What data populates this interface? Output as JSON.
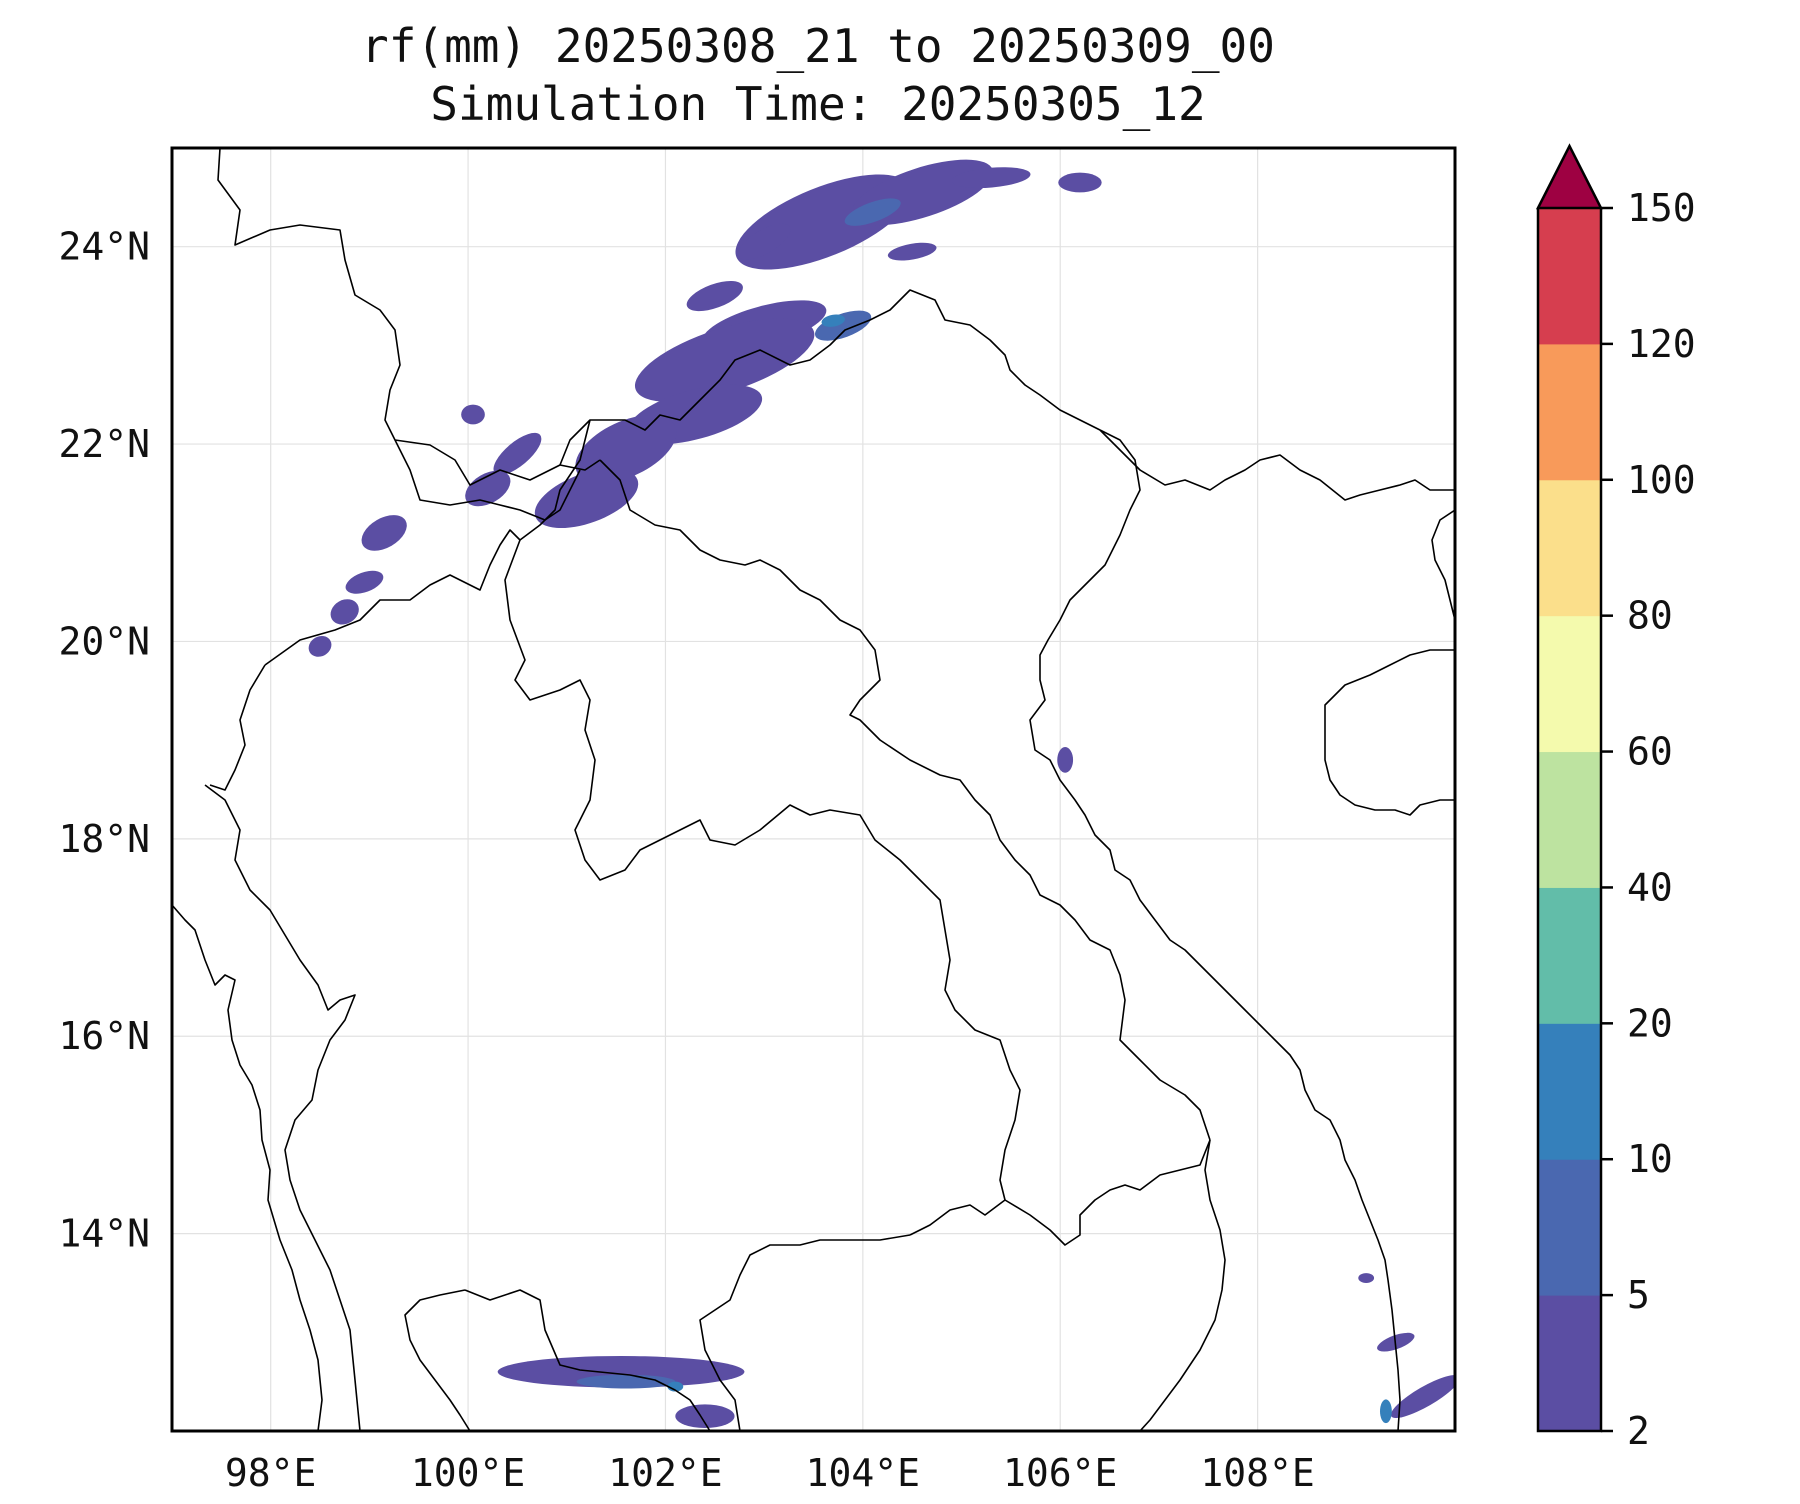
{
  "title": {
    "line1": "rf(mm) 20250308_21 to 20250309_00",
    "line2": "Simulation Time: 20250305_12"
  },
  "map": {
    "lon_range": [
      97.0,
      110.0
    ],
    "lat_range": [
      12.0,
      25.0
    ],
    "grid": true,
    "x_ticks": [
      {
        "value": 98,
        "label": "98°E"
      },
      {
        "value": 100,
        "label": "100°E"
      },
      {
        "value": 102,
        "label": "102°E"
      },
      {
        "value": 104,
        "label": "104°E"
      },
      {
        "value": 106,
        "label": "106°E"
      },
      {
        "value": 108,
        "label": "108°E"
      }
    ],
    "y_ticks": [
      {
        "value": 24,
        "label": "24°N"
      },
      {
        "value": 22,
        "label": "22°N"
      },
      {
        "value": 20,
        "label": "20°N"
      },
      {
        "value": 18,
        "label": "18°N"
      },
      {
        "value": 16,
        "label": "16°N"
      },
      {
        "value": 14,
        "label": "14°N"
      }
    ]
  },
  "colorbar": {
    "levels": [
      "2",
      "5",
      "10",
      "20",
      "40",
      "60",
      "80",
      "100",
      "120",
      "150"
    ],
    "colors": [
      "#5b4ea3",
      "#4a68b0",
      "#3580bb",
      "#62bda9",
      "#bde3a0",
      "#f4faad",
      "#fbdf8b",
      "#f89a5a",
      "#d63e4f"
    ],
    "extend_color": "#9e0142",
    "extend": "max"
  },
  "rain_areas": [
    {
      "level": "2-5",
      "lon": 103.6,
      "lat": 24.25,
      "rx": 0.95,
      "ry": 0.35,
      "rot": -22
    },
    {
      "level": "2-5",
      "lon": 104.6,
      "lat": 24.55,
      "rx": 0.75,
      "ry": 0.25,
      "rot": -18
    },
    {
      "level": "2-5",
      "lon": 102.5,
      "lat": 23.5,
      "rx": 0.3,
      "ry": 0.12,
      "rot": -20
    },
    {
      "level": "2-5",
      "lon": 103.0,
      "lat": 23.2,
      "rx": 0.65,
      "ry": 0.2,
      "rot": -15
    },
    {
      "level": "2-5",
      "lon": 102.6,
      "lat": 22.85,
      "rx": 0.95,
      "ry": 0.32,
      "rot": -18
    },
    {
      "level": "2-5",
      "lon": 102.3,
      "lat": 22.3,
      "rx": 0.7,
      "ry": 0.25,
      "rot": -15
    },
    {
      "level": "2-5",
      "lon": 101.6,
      "lat": 21.95,
      "rx": 0.55,
      "ry": 0.28,
      "rot": -25
    },
    {
      "level": "2-5",
      "lon": 101.2,
      "lat": 21.45,
      "rx": 0.55,
      "ry": 0.25,
      "rot": -20
    },
    {
      "level": "2-5",
      "lon": 100.2,
      "lat": 21.55,
      "rx": 0.25,
      "ry": 0.15,
      "rot": -30
    },
    {
      "level": "2-5",
      "lon": 100.5,
      "lat": 21.9,
      "rx": 0.3,
      "ry": 0.12,
      "rot": -40
    },
    {
      "level": "2-5",
      "lon": 99.15,
      "lat": 21.1,
      "rx": 0.25,
      "ry": 0.15,
      "rot": -30
    },
    {
      "level": "2-5",
      "lon": 98.95,
      "lat": 20.6,
      "rx": 0.2,
      "ry": 0.1,
      "rot": -20
    },
    {
      "level": "2-5",
      "lon": 98.75,
      "lat": 20.3,
      "rx": 0.15,
      "ry": 0.12,
      "rot": -30
    },
    {
      "level": "2-5",
      "lon": 98.5,
      "lat": 19.95,
      "rx": 0.12,
      "ry": 0.1,
      "rot": -30
    },
    {
      "level": "2-5",
      "lon": 100.05,
      "lat": 22.3,
      "rx": 0.12,
      "ry": 0.1,
      "rot": 0
    },
    {
      "level": "2-5",
      "lon": 105.3,
      "lat": 24.7,
      "rx": 0.4,
      "ry": 0.1,
      "rot": -5
    },
    {
      "level": "2-5",
      "lon": 106.2,
      "lat": 24.65,
      "rx": 0.22,
      "ry": 0.1,
      "rot": 0
    },
    {
      "level": "2-5",
      "lon": 104.5,
      "lat": 23.95,
      "rx": 0.25,
      "ry": 0.08,
      "rot": -10
    },
    {
      "level": "2-5",
      "lon": 103.0,
      "lat": 24.05,
      "rx": 0.3,
      "ry": 0.12,
      "rot": -30
    },
    {
      "level": "2-5",
      "lon": 101.55,
      "lat": 12.6,
      "rx": 1.25,
      "ry": 0.16,
      "rot": 0
    },
    {
      "level": "2-5",
      "lon": 102.4,
      "lat": 12.15,
      "rx": 0.3,
      "ry": 0.12,
      "rot": 0
    },
    {
      "level": "2-5",
      "lon": 106.05,
      "lat": 18.8,
      "rx": 0.08,
      "ry": 0.13,
      "rot": 0
    },
    {
      "level": "2-5",
      "lon": 109.7,
      "lat": 12.35,
      "rx": 0.4,
      "ry": 0.1,
      "rot": -30
    },
    {
      "level": "2-5",
      "lon": 109.4,
      "lat": 12.9,
      "rx": 0.2,
      "ry": 0.07,
      "rot": -20
    },
    {
      "level": "2-5",
      "lon": 109.1,
      "lat": 13.55,
      "rx": 0.08,
      "ry": 0.05,
      "rot": 0
    },
    {
      "level": "5-10",
      "lon": 103.8,
      "lat": 23.2,
      "rx": 0.3,
      "ry": 0.12,
      "rot": -20
    },
    {
      "level": "5-10",
      "lon": 104.1,
      "lat": 24.35,
      "rx": 0.3,
      "ry": 0.1,
      "rot": -20
    },
    {
      "level": "5-10",
      "lon": 101.6,
      "lat": 12.5,
      "rx": 0.5,
      "ry": 0.07,
      "rot": 0
    },
    {
      "level": "10-20",
      "lon": 103.7,
      "lat": 23.25,
      "rx": 0.12,
      "ry": 0.06,
      "rot": -10
    },
    {
      "level": "10-20",
      "lon": 102.1,
      "lat": 12.45,
      "rx": 0.08,
      "ry": 0.05,
      "rot": 0
    },
    {
      "level": "10-20",
      "lon": 109.3,
      "lat": 12.2,
      "rx": 0.06,
      "ry": 0.12,
      "rot": 0
    }
  ]
}
